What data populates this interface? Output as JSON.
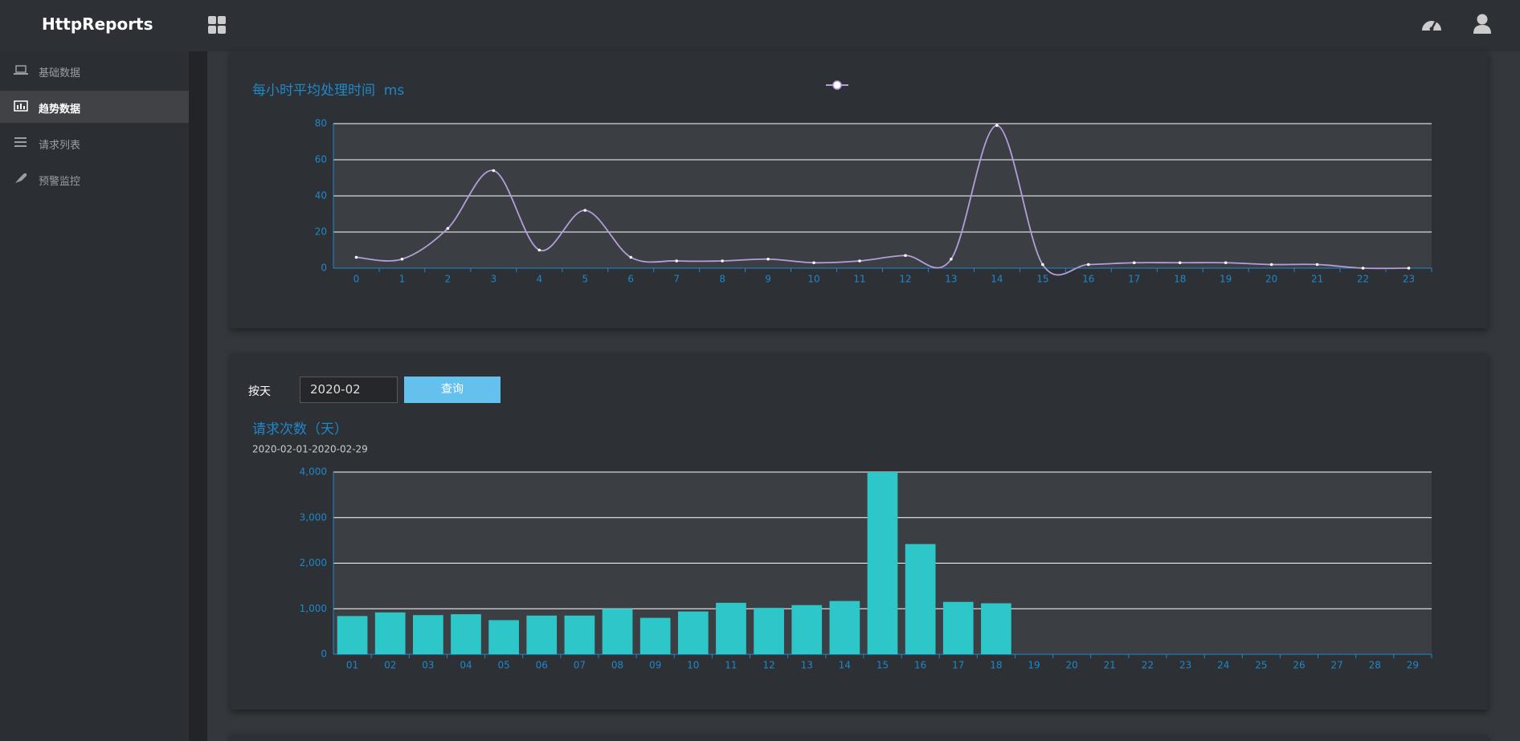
{
  "header": {
    "logo": "HttpReports"
  },
  "sidebar": {
    "items": [
      "基础数据",
      "趋势数据",
      "请求列表",
      "预警监控"
    ]
  },
  "filter": {
    "label": "按天",
    "date": "2020-02",
    "button": "查询"
  },
  "chart_data": [
    {
      "type": "line",
      "title": "每小时平均处理时间  ms",
      "categories": [
        "0",
        "1",
        "2",
        "3",
        "4",
        "5",
        "6",
        "7",
        "8",
        "9",
        "10",
        "11",
        "12",
        "13",
        "14",
        "15",
        "16",
        "17",
        "18",
        "19",
        "20",
        "21",
        "22",
        "23"
      ],
      "values": [
        6,
        5,
        22,
        54,
        10,
        32,
        6,
        4,
        4,
        5,
        3,
        4,
        7,
        5,
        79,
        2,
        2,
        3,
        3,
        3,
        2,
        2,
        0,
        0
      ],
      "color": "#b39ddb",
      "ylim": [
        0,
        80
      ],
      "yticks": [
        0,
        20,
        40,
        60,
        80
      ],
      "grid": true
    },
    {
      "type": "bar",
      "title": "请求次数（天）",
      "subtitle": "2020-02-01-2020-02-29",
      "categories": [
        "01",
        "02",
        "03",
        "04",
        "05",
        "06",
        "07",
        "08",
        "09",
        "10",
        "11",
        "12",
        "13",
        "14",
        "15",
        "16",
        "17",
        "18",
        "19",
        "20",
        "21",
        "22",
        "23",
        "24",
        "25",
        "26",
        "27",
        "28",
        "29"
      ],
      "values": [
        840,
        920,
        860,
        880,
        750,
        850,
        850,
        1000,
        800,
        940,
        1130,
        1020,
        1080,
        1170,
        4000,
        2420,
        1150,
        1120,
        0,
        0,
        0,
        0,
        0,
        0,
        0,
        0,
        0,
        0,
        0
      ],
      "color": "#2ec7c9",
      "ylim": [
        0,
        4000
      ],
      "yticks": [
        0,
        {
          "value": 1000,
          "label": "1,000"
        },
        {
          "value": 2000,
          "label": "2,000"
        },
        {
          "value": 3000,
          "label": "3,000"
        },
        {
          "value": 4000,
          "label": "4,000"
        }
      ],
      "grid": true
    }
  ]
}
